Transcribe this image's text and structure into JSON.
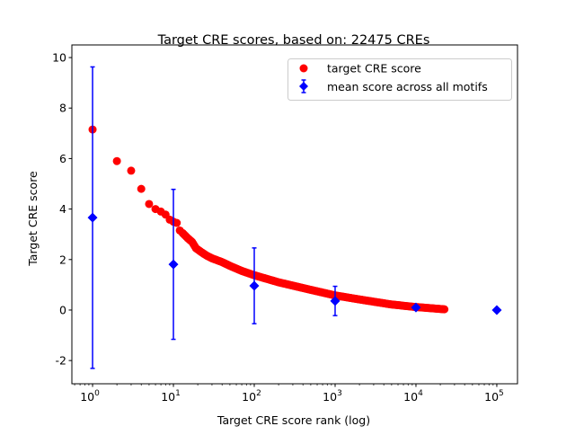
{
  "chart_data": {
    "type": "scatter",
    "title": "Target CRE scores, based on: 22475 CREs",
    "xlabel": "Target CRE score rank (log)",
    "ylabel": "Target CRE score",
    "xscale": "log",
    "xlim_log10": [
      -0.256,
      5.256
    ],
    "ylim": [
      -2.92,
      10.5
    ],
    "yticks": [
      -2,
      0,
      2,
      4,
      6,
      8,
      10
    ],
    "xticks": [
      {
        "value": 1,
        "base": "10",
        "exp": "0"
      },
      {
        "value": 10,
        "base": "10",
        "exp": "1"
      },
      {
        "value": 100,
        "base": "10",
        "exp": "2"
      },
      {
        "value": 1000,
        "base": "10",
        "exp": "3"
      },
      {
        "value": 10000,
        "base": "10",
        "exp": "4"
      },
      {
        "value": 100000,
        "base": "10",
        "exp": "5"
      }
    ],
    "grid": false,
    "legend": {
      "placement": "top-right",
      "entries": [
        "target CRE score",
        "mean score across all motifs"
      ]
    },
    "series": [
      {
        "name": "target CRE score",
        "color": "#ff0000",
        "marker": "circle",
        "points": [
          [
            1,
            7.15
          ],
          [
            2,
            5.9
          ],
          [
            3,
            5.52
          ],
          [
            4,
            4.8
          ],
          [
            5,
            4.2
          ],
          [
            6,
            4.0
          ],
          [
            7,
            3.9
          ],
          [
            8,
            3.78
          ],
          [
            9,
            3.58
          ],
          [
            10,
            3.5
          ],
          [
            11,
            3.45
          ],
          [
            12,
            3.15
          ],
          [
            13,
            3.05
          ],
          [
            15,
            2.85
          ],
          [
            17,
            2.7
          ],
          [
            19,
            2.45
          ],
          [
            22,
            2.3
          ],
          [
            26,
            2.15
          ],
          [
            30,
            2.05
          ],
          [
            40,
            1.9
          ],
          [
            50,
            1.75
          ],
          [
            70,
            1.55
          ],
          [
            100,
            1.38
          ],
          [
            200,
            1.1
          ],
          [
            500,
            0.8
          ],
          [
            1000,
            0.58
          ],
          [
            2000,
            0.42
          ],
          [
            5000,
            0.22
          ],
          [
            10000,
            0.12
          ],
          [
            22475,
            0.03
          ]
        ]
      },
      {
        "name": "mean score across all motifs",
        "color": "#0000ff",
        "marker": "diamond",
        "points": [
          {
            "x": 1,
            "y": 3.66,
            "err": 5.97
          },
          {
            "x": 10,
            "y": 1.81,
            "err": 2.97
          },
          {
            "x": 100,
            "y": 0.96,
            "err": 1.5
          },
          {
            "x": 1000,
            "y": 0.36,
            "err": 0.58
          },
          {
            "x": 10000,
            "y": 0.1,
            "err": 0.03
          },
          {
            "x": 100000,
            "y": 0.0,
            "err": 0
          }
        ]
      }
    ]
  }
}
